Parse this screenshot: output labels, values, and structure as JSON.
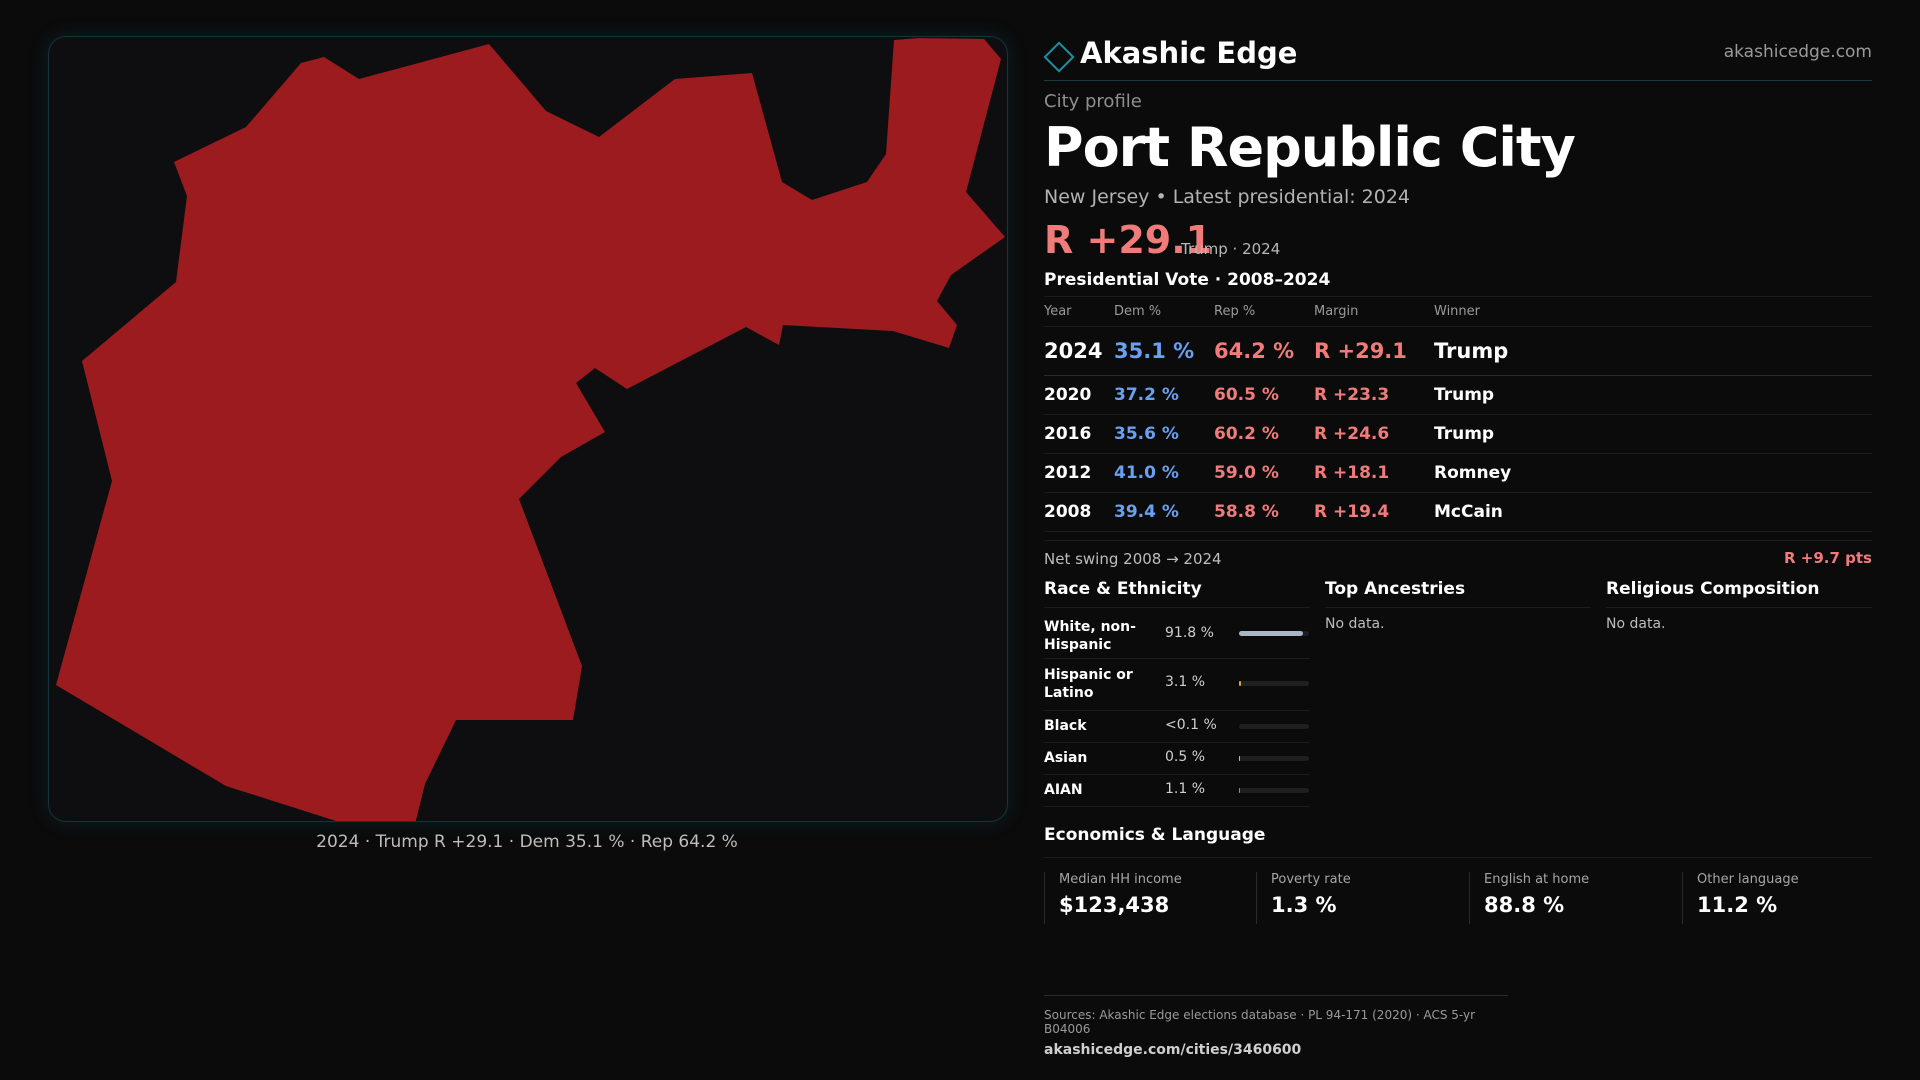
{
  "brand": {
    "name": "Akashic Edge",
    "site": "akashicedge.com"
  },
  "profile": {
    "eyebrow": "City profile",
    "city": "Port Republic City",
    "subtitle": "New Jersey • Latest presidential: 2024",
    "headline_margin": "R +29.1",
    "headline_note": "Trump · 2024"
  },
  "map": {
    "caption": "2024 · Trump R +29.1 · Dem 35.1 % · Rep 64.2 %",
    "fill_color": "#9b1b1e"
  },
  "vote": {
    "title": "Presidential Vote · 2008–2024",
    "headers": {
      "year": "Year",
      "dem": "Dem %",
      "rep": "Rep %",
      "margin": "Margin",
      "winner": "Winner"
    },
    "rows": [
      {
        "year": "2024",
        "dem": "35.1 %",
        "rep": "64.2 %",
        "margin": "R +29.1",
        "winner": "Trump"
      },
      {
        "year": "2020",
        "dem": "37.2 %",
        "rep": "60.5 %",
        "margin": "R +23.3",
        "winner": "Trump"
      },
      {
        "year": "2016",
        "dem": "35.6 %",
        "rep": "60.2 %",
        "margin": "R +24.6",
        "winner": "Trump"
      },
      {
        "year": "2012",
        "dem": "41.0 %",
        "rep": "59.0 %",
        "margin": "R +18.1",
        "winner": "Romney"
      },
      {
        "year": "2008",
        "dem": "39.4 %",
        "rep": "58.8 %",
        "margin": "R +19.4",
        "winner": "McCain"
      }
    ],
    "swing_label": "Net swing 2008 → 2024",
    "swing_value": "R +9.7 pts"
  },
  "race": {
    "title": "Race & Ethnicity",
    "rows": [
      {
        "label": "White, non-Hispanic",
        "value": "91.8 %",
        "fraction": 0.918,
        "color": "#a9b4c4"
      },
      {
        "label": "Hispanic or Latino",
        "value": "3.1 %",
        "fraction": 0.031,
        "color": "#e3a33a"
      },
      {
        "label": "Black",
        "value": "<0.1 %",
        "fraction": 0.0,
        "color": "#6aa0f0"
      },
      {
        "label": "Asian",
        "value": "0.5 %",
        "fraction": 0.005,
        "color": "#8fd0c0"
      },
      {
        "label": "AIAN",
        "value": "1.1 %",
        "fraction": 0.011,
        "color": "#e0715a"
      }
    ]
  },
  "ancestries": {
    "title": "Top Ancestries",
    "empty": "No data."
  },
  "religion": {
    "title": "Religious Composition",
    "empty": "No data."
  },
  "economics": {
    "title": "Economics & Language",
    "cards": [
      {
        "label": "Median HH income",
        "value": "$123,438"
      },
      {
        "label": "Poverty rate",
        "value": "1.3 %"
      },
      {
        "label": "English at home",
        "value": "88.8 %"
      },
      {
        "label": "Other language",
        "value": "11.2 %"
      }
    ]
  },
  "sources": {
    "text": "Sources: Akashic Edge elections database · PL 94-171 (2020) · ACS 5-yr B04006",
    "link": "akashicedge.com/cities/3460600"
  }
}
